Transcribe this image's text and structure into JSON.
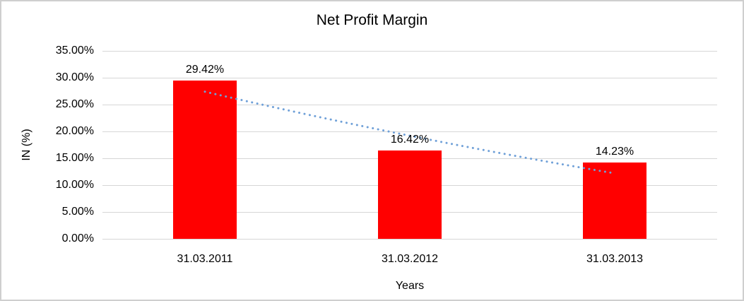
{
  "chart_data": {
    "type": "bar",
    "title": "Net Profit Margin",
    "xlabel": "Years",
    "ylabel": "IN (%)",
    "categories": [
      "31.03.2011",
      "31.03.2012",
      "31.03.2013"
    ],
    "values": [
      29.42,
      16.42,
      14.23
    ],
    "value_labels": [
      "29.42%",
      "16.42%",
      "14.23%"
    ],
    "y_ticks": [
      {
        "value": 0,
        "label": "0.00%"
      },
      {
        "value": 5,
        "label": "5.00%"
      },
      {
        "value": 10,
        "label": "10.00%"
      },
      {
        "value": 15,
        "label": "15.00%"
      },
      {
        "value": 20,
        "label": "20.00%"
      },
      {
        "value": 25,
        "label": "25.00%"
      },
      {
        "value": 30,
        "label": "30.00%"
      },
      {
        "value": 35,
        "label": "35.00%"
      }
    ],
    "ylim": [
      0,
      35
    ],
    "grid": "horizontal",
    "legend": "none",
    "bar_color": "#ff0000",
    "gridline_color": "#d6d6d6",
    "trendline": {
      "style": "dotted",
      "color": "#6fa0d8",
      "values_at_categories": [
        27.4,
        19.2,
        12.2
      ]
    }
  }
}
